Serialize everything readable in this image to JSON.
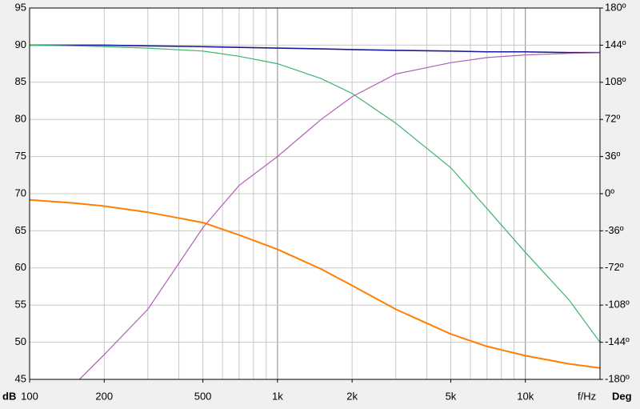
{
  "chart_data": {
    "type": "line",
    "xscale": "log",
    "grid": true,
    "x": [
      100,
      150,
      200,
      300,
      500,
      700,
      1000,
      1500,
      2000,
      3000,
      5000,
      7000,
      10000,
      15000,
      20000
    ],
    "xlim": [
      100,
      20000
    ],
    "xticks": [
      100,
      200,
      500,
      {
        "value": 1000,
        "label": "1k"
      },
      {
        "value": 2000,
        "label": "2k"
      },
      {
        "value": 5000,
        "label": "5k"
      },
      {
        "value": 10000,
        "label": "10k"
      }
    ],
    "xlabel": "f/Hz",
    "ylabel": "dB",
    "y2label": "Deg",
    "ylim": [
      45,
      95
    ],
    "yticks": [
      45,
      50,
      55,
      60,
      65,
      70,
      75,
      80,
      85,
      90,
      95
    ],
    "y2lim": [
      -180,
      180
    ],
    "y2ticks": [
      {
        "value": -180,
        "label": "-180º"
      },
      {
        "value": -144,
        "label": "-144º"
      },
      {
        "value": -108,
        "label": "-108º"
      },
      {
        "value": -72,
        "label": "-72º"
      },
      {
        "value": -36,
        "label": "-36º"
      },
      {
        "value": 0,
        "label": "0º"
      },
      {
        "value": 36,
        "label": "36º"
      },
      {
        "value": 72,
        "label": "72º"
      },
      {
        "value": 108,
        "label": "108º"
      },
      {
        "value": 144,
        "label": "144º"
      },
      {
        "value": 180,
        "label": "180º"
      }
    ],
    "ylabel_color": "#1a1aa0",
    "y2label_color": "#ff7f00",
    "series": [
      {
        "color": "#1a1a9a",
        "values": [
          90,
          90,
          90,
          89.9,
          89.8,
          89.7,
          89.6,
          89.5,
          89.4,
          89.3,
          89.2,
          89.1,
          89.1,
          89.0,
          89.0
        ]
      },
      {
        "color": "#3cb46e",
        "values": [
          90,
          89.9,
          89.8,
          89.6,
          89.2,
          88.5,
          87.5,
          85.5,
          83.5,
          79.5,
          73.5,
          68,
          62.1,
          55.7,
          50
        ]
      },
      {
        "color": "#b060b8",
        "axis": "y2",
        "values": [
          null,
          -186,
          -156,
          -112,
          -33,
          8,
          36,
          72,
          94,
          116,
          127,
          132,
          134.5,
          136,
          136.6
        ]
      },
      {
        "color": "#ff7f00",
        "axis": "y2",
        "values": [
          -6,
          -9,
          -12,
          -18,
          -28,
          -40,
          -54,
          -73,
          -89,
          -112,
          -136,
          -148,
          -157,
          -165,
          -169
        ]
      }
    ]
  }
}
